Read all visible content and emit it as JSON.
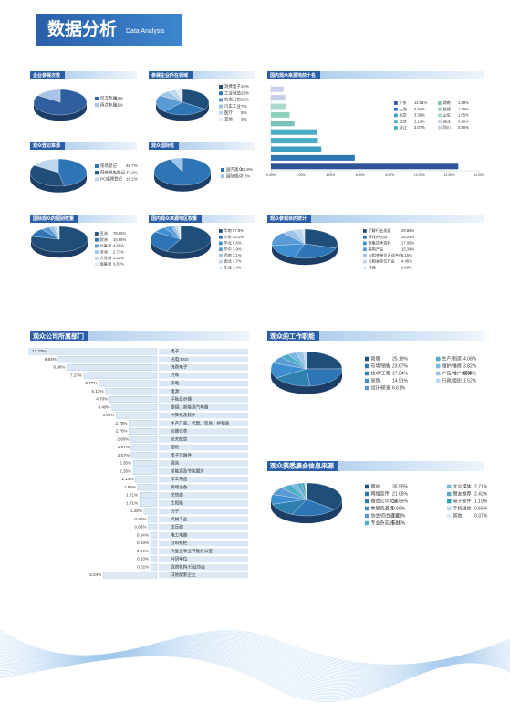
{
  "header": {
    "title": "数据分析",
    "subtitle": "Data Analysis"
  },
  "chart_data": [
    {
      "type": "pie",
      "title": "企业参展次数",
      "categories": [
        "首次参展",
        "再次参展"
      ],
      "values": [
        84,
        16
      ],
      "value_labels": [
        "84%",
        "16%"
      ],
      "colors": [
        "#2f5f9e",
        "#a9c4e4"
      ]
    },
    {
      "type": "pie",
      "title": "参展企业所在领域",
      "categories": [
        "消费电子",
        "工业制造",
        "机电习控",
        "汽车工业",
        "医疗",
        "其他"
      ],
      "values": [
        34,
        28,
        22,
        7,
        5,
        4
      ],
      "value_labels": [
        "34%",
        "28%",
        "22%",
        "7%",
        "5%",
        "4%"
      ],
      "colors": [
        "#1f4e79",
        "#2e75b6",
        "#5b9bd5",
        "#9dc3e6",
        "#bdd7ee",
        "#deebf7"
      ]
    },
    {
      "type": "bar",
      "horizontal": true,
      "title": "国内观众来源地前十名",
      "categories": [
        "广东",
        "上海",
        "北京",
        "江苏",
        "浙江",
        "湖南",
        "福建",
        "山东",
        "湖北",
        "四川"
      ],
      "values": [
        12.61,
        5.64,
        3.39,
        3.16,
        3.07,
        1.58,
        1.26,
        1.05,
        0.96,
        0.85
      ],
      "value_labels": [
        "12.61%",
        "5.64%",
        "3.39%",
        "3.16%",
        "3.07%",
        "1.58%",
        "1.26%",
        "1.05%",
        "0.96%",
        "0.85%"
      ],
      "colors": [
        "#2f5597",
        "#2e75b6",
        "#3a9fc0",
        "#4bacc6",
        "#4bacc6",
        "#79c2b8",
        "#8fd0c0",
        "#a9d8cc",
        "#c5cfe8",
        "#c9d2ea"
      ],
      "xlim": [
        0,
        14
      ],
      "xticks": [
        {
          "value": 0,
          "label": "0.00%"
        },
        {
          "value": 2,
          "label": "2.00%"
        },
        {
          "value": 4,
          "label": "4.00%"
        },
        {
          "value": 6,
          "label": "6.00%"
        },
        {
          "value": 8,
          "label": "8.00%"
        },
        {
          "value": 10,
          "label": "10.00%"
        },
        {
          "value": 12,
          "label": "12.00%"
        },
        {
          "value": 14,
          "label": "14.00%"
        }
      ]
    },
    {
      "type": "pie",
      "title": "观众登记来源",
      "categories": [
        "现场登记",
        "网络预先登记",
        "PC端预登记"
      ],
      "values": [
        46.7,
        37.2,
        16.1
      ],
      "value_labels": [
        "46.7%",
        "37.2%",
        "16.1%"
      ],
      "colors": [
        "#2e75b6",
        "#1f4e79",
        "#bdd7ee"
      ]
    },
    {
      "type": "pie",
      "title": "观众国际性",
      "categories": [
        "国内观众",
        "国际观众"
      ],
      "values": [
        92.8,
        7.2
      ],
      "value_labels": [
        "92.8%",
        "7.2%"
      ],
      "colors": [
        "#2e75b6",
        "#9dc3e6"
      ]
    },
    {
      "type": "pie",
      "title": "国际观众的国别权重",
      "categories": [
        "亚洲",
        "欧洲",
        "北美洲",
        "非洲",
        "大洋洲",
        "南美洲"
      ],
      "values": [
        78.65,
        10.66,
        4.89,
        2.77,
        2.22,
        0.81
      ],
      "value_labels": [
        "78.65%",
        "10.66%",
        "4.89%",
        "2.77%",
        "2.22%",
        "0.81%"
      ],
      "colors": [
        "#1f4e79",
        "#2e75b6",
        "#5b9bd5",
        "#9dc3e6",
        "#bdd7ee",
        "#deebf7"
      ]
    },
    {
      "type": "pie",
      "title": "国内观众来源地区权重",
      "categories": [
        "华南",
        "华东",
        "华北",
        "华中",
        "西南",
        "西北",
        "东北"
      ],
      "values": [
        57.9,
        26.2,
        6.8,
        3.9,
        2.1,
        1.7,
        1.4
      ],
      "value_labels": [
        "57.9%",
        "26.2%",
        "6.8%",
        "3.9%",
        "2.1%",
        "1.7%",
        "1.4%"
      ],
      "colors": [
        "#1f4e79",
        "#2e75b6",
        "#3d8fd1",
        "#5b9bd5",
        "#9dc3e6",
        "#bdd7ee",
        "#deebf7"
      ]
    },
    {
      "type": "pie",
      "title": "观众参观目的统计",
      "categories": [
        "了解行业发展",
        "寻找供应商",
        "收集技术资料",
        "采购产品",
        "与相关单位洽谈合作",
        "与相关单位开会",
        "其他"
      ],
      "values": [
        29.86,
        25.21,
        17.99,
        15.34,
        6.15,
        4.45,
        0.99
      ],
      "value_labels": [
        "29.86%",
        "25.21%",
        "17.99%",
        "15.34%",
        "6.15%",
        "4.45%",
        "0.99%"
      ],
      "colors": [
        "#1f4e79",
        "#2e75b6",
        "#3d8fd1",
        "#5b9bd5",
        "#9dc3e6",
        "#bdd7ee",
        "#deebf7"
      ]
    },
    {
      "type": "bar",
      "horizontal": true,
      "title": "观众公司所属部门",
      "categories": [
        "电子",
        "光电/LED",
        "消费电子",
        "汽车",
        "家电",
        "电源",
        "平板显示器",
        "眼镜、新能源汽车器",
        "计算机及软件",
        "生产厂商、代理、贸易、经销商",
        "仪器仪表",
        "航天航空",
        "国防",
        "电子元器件",
        "服装",
        "新能源及节能服务",
        "军工用品",
        "终端设备",
        "安防器",
        "太阳能",
        "光学",
        "机械工业",
        "变压器",
        "电工电器",
        "音响机柜",
        "大型企事业节能办公室",
        "科研单位",
        "政府机构/行业协会",
        "其他配套企业"
      ],
      "values": [
        12.73,
        9.84,
        8.96,
        7.27,
        5.77,
        5.13,
        4.7,
        4.49,
        4.05,
        2.78,
        2.76,
        2.6,
        2.57,
        2.57,
        2.35,
        2.35,
        2.14,
        1.92,
        1.71,
        1.71,
        1.28,
        0.86,
        0.86,
        0.64,
        0.63,
        0.64,
        0.63,
        0.61,
        5.34
      ],
      "value_labels": [
        "12.73%",
        "9.84%",
        "8.96%",
        "7.27%",
        "5.77%",
        "5.13%",
        "4.70%",
        "4.49%",
        "4.05%",
        "2.78%",
        "2.76%",
        "2.60%",
        "2.57%",
        "2.57%",
        "2.35%",
        "2.35%",
        "2.14%",
        "1.92%",
        "1.71%",
        "1.71%",
        "1.28%",
        "0.86%",
        "0.86%",
        "0.64%",
        "0.63%",
        "0.64%",
        "0.63%",
        "0.61%",
        "5.34%"
      ],
      "color": "#dce9f5",
      "xlim": [
        0,
        13
      ]
    },
    {
      "type": "pie",
      "title": "观众的工作职能",
      "categories": [
        "管理",
        "市场/销售",
        "技术/工程",
        "采购",
        "设计/研发",
        "生产/制造",
        "维护/维修",
        "广告/推广/媒体",
        "行政/组织"
      ],
      "values": [
        25.19,
        23.67,
        17.84,
        14.51,
        6.61,
        4.08,
        3.82,
        3.56,
        1.52
      ],
      "value_labels": [
        "25.19%",
        "23.67%",
        "17.84%",
        "14.51%",
        "6.61%",
        "4.08%",
        "3.82%",
        "3.56%",
        "1.52%"
      ],
      "colors": [
        "#1f4e79",
        "#2e75b6",
        "#2f7fb0",
        "#3d8fd1",
        "#5b9bd5",
        "#4bacc6",
        "#79b8e0",
        "#9dc3e6",
        "#bdd7ee"
      ]
    },
    {
      "type": "pie",
      "title": "观众获悉展会信息来源",
      "categories": [
        "网站",
        "网络宣传",
        "微信公众文章",
        "参展商邀请",
        "协会/商会邀请",
        "专业杂志/报刊",
        "大众媒体",
        "朋友推荐",
        "电子邮件",
        "手机短信",
        "其他"
      ],
      "values": [
        35.5,
        21.06,
        13.55,
        9.66,
        7.61,
        5.15,
        2.71,
        2.42,
        1.19,
        0.56,
        0.37
      ],
      "value_labels": [
        "35.50%",
        "21.06%",
        "13.55%",
        "9.66%",
        "7.61%",
        "5.15%",
        "2.71%",
        "2.42%",
        "1.19%",
        "0.56%",
        "0.37%"
      ],
      "colors": [
        "#1f4e79",
        "#2e75b6",
        "#2f7fb0",
        "#3d8fd1",
        "#5b9bd5",
        "#4bacc6",
        "#79b8e0",
        "#5aa9c8",
        "#2f9fb8",
        "#bdd7ee",
        "#deebf7"
      ]
    }
  ]
}
